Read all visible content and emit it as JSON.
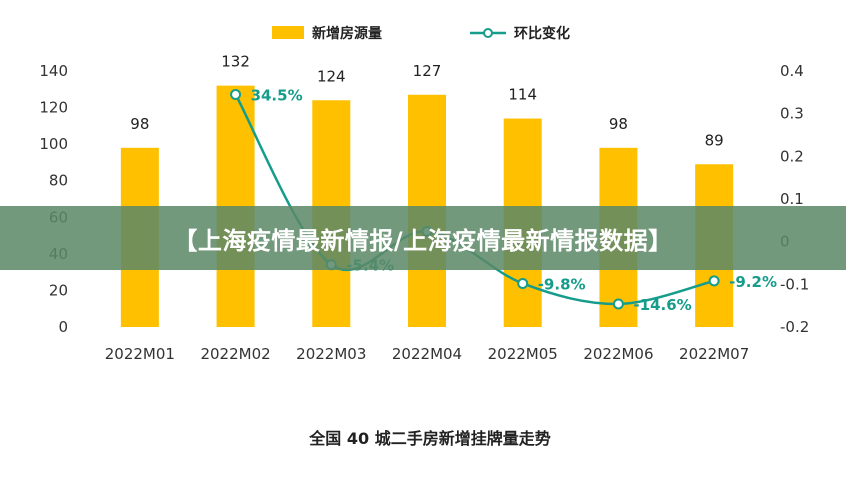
{
  "banner": {
    "text": "【上海疫情最新情报/上海疫情最新情报数据】"
  },
  "chart_data": {
    "type": "bar",
    "title": "全国 40 城二手房新增挂牌量走势",
    "categories": [
      "2022M01",
      "2022M02",
      "2022M03",
      "2022M04",
      "2022M05",
      "2022M06",
      "2022M07"
    ],
    "series": [
      {
        "name": "新增房源量",
        "type": "bar",
        "axis": "left",
        "color": "#ffc000",
        "values": [
          98,
          132,
          124,
          127,
          114,
          98,
          89
        ],
        "labels": [
          "98",
          "132",
          "124",
          "127",
          "114",
          "98",
          "89"
        ]
      },
      {
        "name": "环比变化",
        "type": "line",
        "axis": "right",
        "color": "#169c8a",
        "values": [
          null,
          0.345,
          -0.054,
          0.024,
          -0.098,
          -0.146,
          -0.092
        ],
        "labels": [
          "",
          "34.5%",
          "-5.4%",
          "",
          "-9.8%",
          "-14.6%",
          "-9.2%"
        ]
      }
    ],
    "y_left": {
      "range": [
        0,
        140
      ],
      "ticks": [
        "0",
        "20",
        "40",
        "60",
        "80",
        "100",
        "120",
        "140"
      ]
    },
    "y_right": {
      "range": [
        -0.2,
        0.4
      ],
      "ticks": [
        "-0.2",
        "-0.1",
        "0",
        "0.1",
        "0.2",
        "0.3",
        "0.4"
      ]
    },
    "grid": false,
    "legend": "top-center"
  }
}
